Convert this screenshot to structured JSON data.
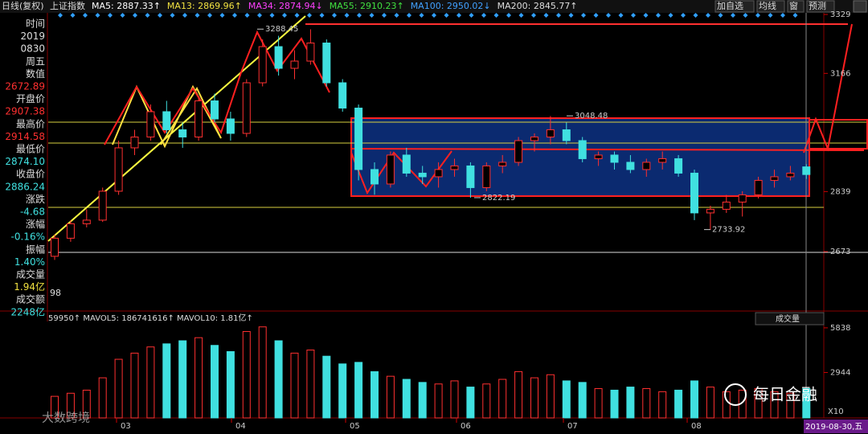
{
  "header": {
    "period": "日线(复权)",
    "index_name": "上证指数",
    "ma": [
      {
        "text": "MA5: 2887.33↑",
        "color": "#ffffff"
      },
      {
        "text": "MA13: 2869.96↑",
        "color": "#f0e040"
      },
      {
        "text": "MA34: 2874.94↓",
        "color": "#ff40ff"
      },
      {
        "text": "MA55: 2910.23↑",
        "color": "#40e040"
      },
      {
        "text": "MA100: 2950.02↓",
        "color": "#40a0ff"
      },
      {
        "text": "MA200: 2845.77↑",
        "color": "#dddddd"
      }
    ],
    "buttons": [
      "加自选",
      "均线",
      "窗",
      "预测"
    ]
  },
  "sidebar": [
    "时间",
    "2019",
    "0830",
    "周五",
    "数值",
    "2672.89",
    "开盘价",
    "2907.38",
    "最高价",
    "2914.58",
    "最低价",
    "2874.10",
    "收盘价",
    "2886.24",
    "涨跌",
    "-4.68",
    "涨幅",
    "-0.16%",
    "振幅",
    "1.40%",
    "成交量",
    "1.94亿",
    "成交额",
    "2248亿"
  ],
  "sidebar_cut_label": "98",
  "price_axis": {
    "ylim": [
      2513,
      3369
    ],
    "yticks": [
      3329,
      3166,
      2839,
      2673
    ]
  },
  "annotations": [
    {
      "label": "3288.45",
      "value": 3288.45
    },
    {
      "label": "3048.48",
      "value": 3048.48
    },
    {
      "label": "2822.19",
      "value": 2822.19
    },
    {
      "label": "2733.92",
      "value": 2733.92
    }
  ],
  "candles": [
    {
      "open": 2660,
      "high": 2720,
      "low": 2650,
      "close": 2710
    },
    {
      "open": 2710,
      "high": 2760,
      "low": 2700,
      "close": 2750
    },
    {
      "open": 2750,
      "high": 2790,
      "low": 2740,
      "close": 2760
    },
    {
      "open": 2760,
      "high": 2850,
      "low": 2755,
      "close": 2840
    },
    {
      "open": 2840,
      "high": 2980,
      "low": 2830,
      "close": 2960
    },
    {
      "open": 2960,
      "high": 3010,
      "low": 2940,
      "close": 2990
    },
    {
      "open": 2990,
      "high": 3080,
      "low": 2980,
      "close": 3060
    },
    {
      "open": 3060,
      "high": 3090,
      "low": 3000,
      "close": 3010
    },
    {
      "open": 3010,
      "high": 3030,
      "low": 2960,
      "close": 2990
    },
    {
      "open": 2990,
      "high": 3100,
      "low": 2980,
      "close": 3090
    },
    {
      "open": 3090,
      "high": 3110,
      "low": 3030,
      "close": 3040
    },
    {
      "open": 3040,
      "high": 3060,
      "low": 2980,
      "close": 3000
    },
    {
      "open": 3000,
      "high": 3150,
      "low": 2990,
      "close": 3140
    },
    {
      "open": 3140,
      "high": 3260,
      "low": 3130,
      "close": 3240
    },
    {
      "open": 3240,
      "high": 3270,
      "low": 3160,
      "close": 3180
    },
    {
      "open": 3180,
      "high": 3230,
      "low": 3150,
      "close": 3200
    },
    {
      "open": 3200,
      "high": 3288,
      "low": 3190,
      "close": 3250
    },
    {
      "open": 3250,
      "high": 3260,
      "low": 3130,
      "close": 3140
    },
    {
      "open": 3140,
      "high": 3150,
      "low": 3060,
      "close": 3070
    },
    {
      "open": 3070,
      "high": 3080,
      "low": 2870,
      "close": 2900
    },
    {
      "open": 2900,
      "high": 2920,
      "low": 2830,
      "close": 2860
    },
    {
      "open": 2860,
      "high": 2950,
      "low": 2850,
      "close": 2940
    },
    {
      "open": 2940,
      "high": 2960,
      "low": 2880,
      "close": 2890
    },
    {
      "open": 2890,
      "high": 2910,
      "low": 2860,
      "close": 2880
    },
    {
      "open": 2880,
      "high": 2920,
      "low": 2850,
      "close": 2900
    },
    {
      "open": 2900,
      "high": 2930,
      "low": 2880,
      "close": 2910
    },
    {
      "open": 2910,
      "high": 2920,
      "low": 2822,
      "close": 2850
    },
    {
      "open": 2850,
      "high": 2920,
      "low": 2840,
      "close": 2910
    },
    {
      "open": 2910,
      "high": 2940,
      "low": 2890,
      "close": 2920
    },
    {
      "open": 2920,
      "high": 2990,
      "low": 2910,
      "close": 2980
    },
    {
      "open": 2980,
      "high": 3000,
      "low": 2950,
      "close": 2990
    },
    {
      "open": 2990,
      "high": 3048,
      "low": 2970,
      "close": 3010
    },
    {
      "open": 3010,
      "high": 3030,
      "low": 2970,
      "close": 2980
    },
    {
      "open": 2980,
      "high": 2990,
      "low": 2920,
      "close": 2930
    },
    {
      "open": 2930,
      "high": 2950,
      "low": 2910,
      "close": 2940
    },
    {
      "open": 2940,
      "high": 2950,
      "low": 2900,
      "close": 2920
    },
    {
      "open": 2920,
      "high": 2940,
      "low": 2890,
      "close": 2900
    },
    {
      "open": 2900,
      "high": 2930,
      "low": 2880,
      "close": 2920
    },
    {
      "open": 2920,
      "high": 2950,
      "low": 2900,
      "close": 2930
    },
    {
      "open": 2930,
      "high": 2940,
      "low": 2880,
      "close": 2890
    },
    {
      "open": 2890,
      "high": 2900,
      "low": 2760,
      "close": 2780
    },
    {
      "open": 2780,
      "high": 2800,
      "low": 2733,
      "close": 2790
    },
    {
      "open": 2790,
      "high": 2830,
      "low": 2780,
      "close": 2810
    },
    {
      "open": 2810,
      "high": 2840,
      "low": 2770,
      "close": 2830
    },
    {
      "open": 2830,
      "high": 2880,
      "low": 2820,
      "close": 2870
    },
    {
      "open": 2870,
      "high": 2900,
      "low": 2850,
      "close": 2880
    },
    {
      "open": 2880,
      "high": 2910,
      "low": 2870,
      "close": 2890
    },
    {
      "open": 2907.38,
      "high": 2914.58,
      "low": 2874.1,
      "close": 2886.24
    }
  ],
  "volume_header": "59950↑ MAVOL5: 186741616↑ MAVOL10: 1.81亿↑",
  "volume_selector": "成交量",
  "volume_axis": {
    "ylim": [
      0,
      6510
    ],
    "yticks": [
      5838,
      2944
    ],
    "unit": "X10"
  },
  "volume": [
    1400,
    1600,
    1800,
    2600,
    3800,
    4200,
    4600,
    4800,
    5000,
    5200,
    4700,
    4300,
    5600,
    5900,
    5000,
    4200,
    4400,
    4000,
    3500,
    3600,
    3000,
    2700,
    2500,
    2300,
    2200,
    2400,
    2000,
    2200,
    2500,
    3000,
    2600,
    2800,
    2400,
    2300,
    1900,
    1800,
    2000,
    1900,
    1700,
    1800,
    2400,
    2000,
    1700,
    1800,
    1900,
    1700,
    1600,
    1900
  ],
  "months": [
    "03",
    "04",
    "05",
    "06",
    "07",
    "08"
  ],
  "cursor_date": "2019-08-30,五",
  "watermarks": [
    "大数跨境",
    "每日金融"
  ]
}
